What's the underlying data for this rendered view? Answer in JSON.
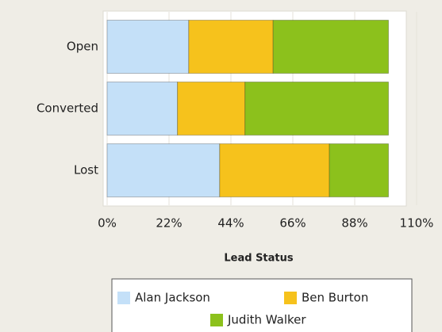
{
  "chart_data": {
    "type": "stacked_bar_horizontal",
    "x_label": "Lead Status",
    "categories": [
      "Open",
      "Converted",
      "Lost"
    ],
    "series": [
      {
        "name": "Alan Jackson",
        "color": "#c4e0f8",
        "values": [
          29,
          25,
          40
        ]
      },
      {
        "name": "Ben Burton",
        "color": "#f6c21c",
        "values": [
          30,
          24,
          39
        ]
      },
      {
        "name": "Judith Walker",
        "color": "#8cc11c",
        "values": [
          41,
          51,
          21
        ]
      }
    ],
    "xlim": [
      0,
      110
    ],
    "xticks": [
      {
        "value": 0,
        "label": "0%"
      },
      {
        "value": 22,
        "label": "22%"
      },
      {
        "value": 44,
        "label": "44%"
      },
      {
        "value": 66,
        "label": "66%"
      },
      {
        "value": 88,
        "label": "88%"
      },
      {
        "value": 110,
        "label": "110%"
      }
    ],
    "grid": true
  }
}
